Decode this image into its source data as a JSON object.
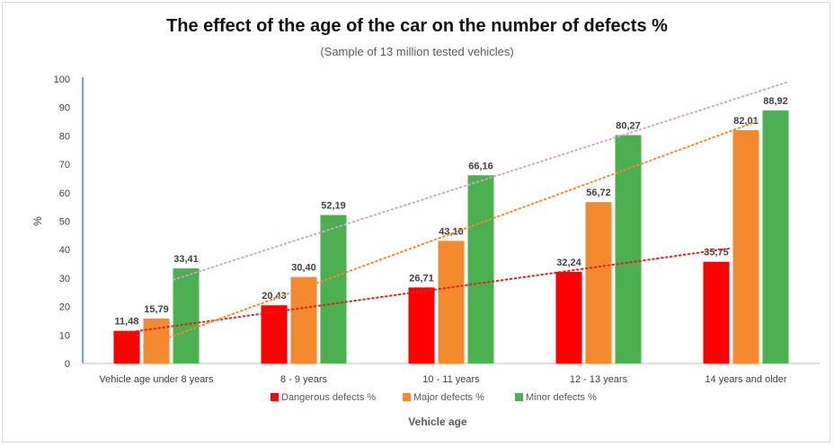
{
  "chart_data": {
    "type": "bar",
    "title": "The effect of the age of the car on the number of defects %",
    "subtitle": "(Sample of 13 million tested vehicles)",
    "xlabel": "Vehicle age",
    "ylabel": "%",
    "ylim": [
      0,
      100
    ],
    "yticks": [
      "0",
      "10",
      "20",
      "30",
      "40",
      "50",
      "60",
      "70",
      "80",
      "90",
      "100"
    ],
    "categories": [
      "Vehicle age under 8 years",
      "8 - 9 years",
      "10 - 11 years",
      "12 - 13 years",
      "14 years and older"
    ],
    "series": [
      {
        "name": "Dangerous defects %",
        "color": "#ff0000",
        "values": [
          11.48,
          20.43,
          26.71,
          32.24,
          35.75
        ],
        "labels": [
          "11,48",
          "20,43",
          "26,71",
          "32,24",
          "35,75"
        ]
      },
      {
        "name": "Major defects %",
        "color": "#f4892e",
        "values": [
          15.79,
          30.4,
          43.1,
          56.72,
          82.01
        ],
        "labels": [
          "15,79",
          "30,40",
          "43,10",
          "56,72",
          "82,01"
        ]
      },
      {
        "name": "Minor defects %",
        "color": "#4caf50",
        "values": [
          33.41,
          52.19,
          66.16,
          80.27,
          88.92
        ],
        "labels": [
          "33,41",
          "52,19",
          "66,16",
          "80,27",
          "88,92"
        ]
      }
    ],
    "trendlines": "linear, dotted, one per series",
    "grid": false,
    "legend": "bottom"
  }
}
